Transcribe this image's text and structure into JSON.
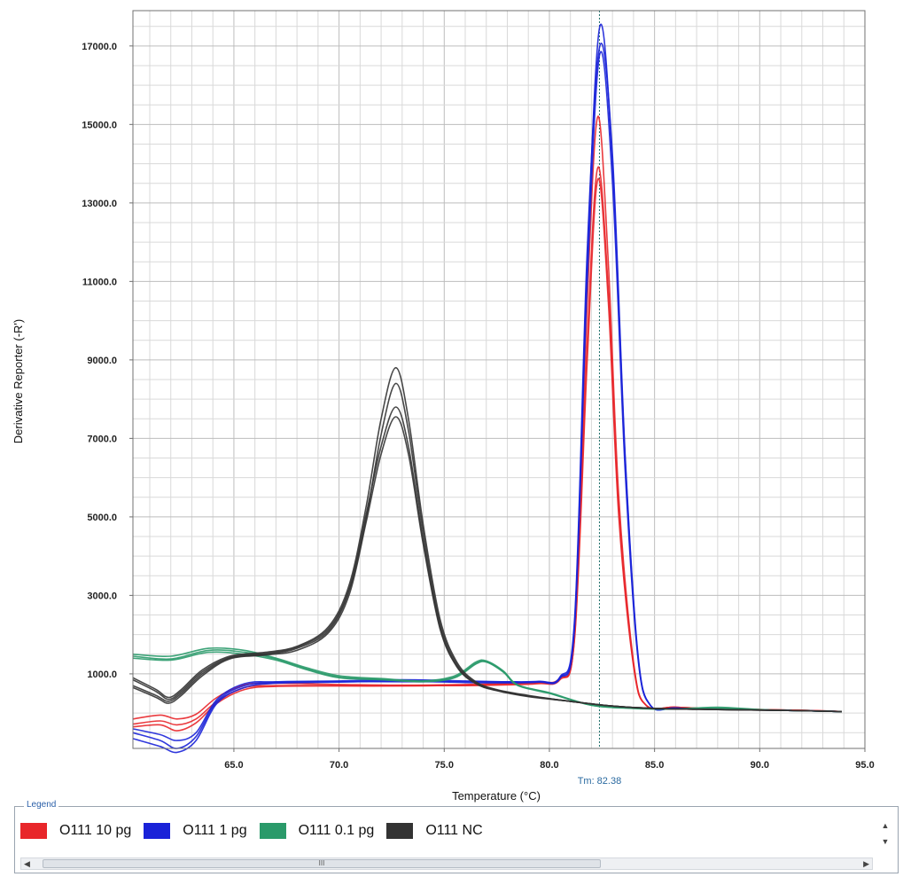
{
  "chart_data": {
    "type": "line",
    "title": "",
    "xlabel": "Temperature (°C)",
    "ylabel": "Derivative Reporter (-R')",
    "xlim": [
      60.2,
      95.0
    ],
    "ylim": [
      -900,
      17900
    ],
    "x_ticks": [
      65.0,
      70.0,
      75.0,
      80.0,
      85.0,
      90.0,
      95.0
    ],
    "x_tick_labels": [
      "65.0",
      "70.0",
      "75.0",
      "80.0",
      "85.0",
      "90.0",
      "95.0"
    ],
    "y_ticks": [
      1000,
      3000,
      5000,
      7000,
      9000,
      11000,
      13000,
      15000,
      17000
    ],
    "y_tick_labels": [
      "1000.0",
      "3000.0",
      "5000.0",
      "7000.0",
      "9000.0",
      "11000.0",
      "13000.0",
      "15000.0",
      "17000.0"
    ],
    "grid": true,
    "marker_line": {
      "x": 82.38,
      "label": "Tm: 82.38"
    },
    "legend_placement": "bottom",
    "series": [
      {
        "name": "O111 10 pg",
        "color": "#e8262a",
        "replicates": [
          {
            "x": [
              60.2,
              61.5,
              62.3,
              63.2,
              64.2,
              65.5,
              67,
              70,
              73,
              76,
              78,
              79.5,
              80.5,
              81.2,
              81.8,
              82.3,
              82.8,
              83.3,
              84,
              84.6,
              86,
              88,
              90,
              92,
              93.9
            ],
            "y": [
              -280,
              -200,
              -300,
              -150,
              300,
              650,
              700,
              700,
              700,
              700,
              720,
              750,
              850,
              1900,
              9000,
              13600,
              10500,
              5000,
              1200,
              200,
              150,
              110,
              90,
              70,
              40
            ]
          },
          {
            "x": [
              60.2,
              61.5,
              62.3,
              63.2,
              64.2,
              65.5,
              67,
              70,
              73,
              76,
              78,
              79.5,
              80.5,
              81.2,
              81.8,
              82.3,
              82.8,
              83.3,
              84,
              84.6,
              86,
              88,
              90,
              92,
              93.9
            ],
            "y": [
              -150,
              -50,
              -150,
              -30,
              400,
              720,
              760,
              730,
              710,
              730,
              760,
              790,
              900,
              2000,
              10500,
              15200,
              11500,
              5500,
              1300,
              200,
              150,
              110,
              90,
              70,
              40
            ]
          },
          {
            "x": [
              60.2,
              61.5,
              62.3,
              63.2,
              64.2,
              65.5,
              67,
              70,
              73,
              76,
              78,
              79.5,
              80.5,
              81.2,
              81.8,
              82.3,
              82.8,
              83.3,
              84,
              84.6,
              86,
              88,
              90,
              92,
              93.9
            ],
            "y": [
              -350,
              -300,
              -450,
              -250,
              250,
              600,
              680,
              690,
              690,
              710,
              740,
              770,
              880,
              1950,
              9500,
              13900,
              10800,
              5200,
              1250,
              200,
              150,
              110,
              90,
              70,
              40
            ]
          }
        ]
      },
      {
        "name": "O111 1 pg",
        "color": "#1a22d8",
        "replicates": [
          {
            "x": [
              60.2,
              61.5,
              62.3,
              63.2,
              64.2,
              65.5,
              67,
              70,
              73,
              76,
              78,
              79.5,
              80.5,
              81.2,
              81.8,
              82.4,
              83,
              83.6,
              84.2,
              84.8,
              86,
              88,
              90,
              92,
              93.9
            ],
            "y": [
              -500,
              -700,
              -900,
              -600,
              300,
              700,
              780,
              800,
              800,
              800,
              790,
              800,
              900,
              2300,
              11500,
              17500,
              14000,
              6500,
              1500,
              200,
              130,
              100,
              80,
              60,
              40
            ]
          },
          {
            "x": [
              60.2,
              61.5,
              62.3,
              63.2,
              64.2,
              65.5,
              67,
              70,
              73,
              76,
              78,
              79.5,
              80.5,
              81.2,
              81.8,
              82.4,
              83,
              83.6,
              84.2,
              84.8,
              86,
              88,
              90,
              92,
              93.9
            ],
            "y": [
              -650,
              -850,
              -1000,
              -700,
              250,
              650,
              760,
              790,
              820,
              780,
              770,
              790,
              880,
              2200,
              11000,
              16800,
              13500,
              6200,
              1450,
              200,
              130,
              100,
              80,
              60,
              40
            ]
          },
          {
            "x": [
              60.2,
              61.5,
              62.3,
              63.2,
              64.2,
              65.5,
              67,
              70,
              73,
              76,
              78,
              79.5,
              80.5,
              81.2,
              81.8,
              82.4,
              83,
              83.6,
              84.2,
              84.8,
              86,
              88,
              90,
              92,
              93.9
            ],
            "y": [
              -400,
              -550,
              -700,
              -500,
              350,
              750,
              800,
              820,
              850,
              820,
              800,
              810,
              920,
              2400,
              11800,
              17000,
              14200,
              6600,
              1550,
              200,
              130,
              100,
              80,
              60,
              40
            ]
          }
        ]
      },
      {
        "name": "O111 0.1 pg",
        "color": "#2a9a6a",
        "replicates": [
          {
            "x": [
              60.2,
              62,
              63.8,
              65.5,
              67,
              68.5,
              70,
              72,
              74,
              75.5,
              76.5,
              77,
              77.8,
              78.5,
              80,
              82,
              84,
              86,
              88,
              90,
              92,
              93.9
            ],
            "y": [
              1400,
              1350,
              1550,
              1500,
              1350,
              1100,
              900,
              850,
              800,
              900,
              1250,
              1300,
              1050,
              700,
              500,
              200,
              120,
              100,
              110,
              80,
              60,
              40
            ]
          },
          {
            "x": [
              60.2,
              62,
              63.8,
              65.5,
              67,
              68.5,
              70,
              72,
              74,
              75.5,
              76.5,
              77,
              77.8,
              78.5,
              80,
              82,
              84,
              86,
              88,
              90,
              92,
              93.9
            ],
            "y": [
              1500,
              1450,
              1650,
              1600,
              1400,
              1150,
              950,
              880,
              820,
              950,
              1300,
              1330,
              1080,
              720,
              520,
              210,
              130,
              110,
              150,
              90,
              60,
              40
            ]
          },
          {
            "x": [
              60.2,
              62,
              63.8,
              65.5,
              67,
              68.5,
              70,
              72,
              74,
              75.5,
              76.5,
              77,
              77.8,
              78.5,
              80,
              82,
              84,
              86,
              88,
              90,
              92,
              93.9
            ],
            "y": [
              1450,
              1380,
              1600,
              1550,
              1380,
              1120,
              920,
              860,
              810,
              920,
              1270,
              1310,
              1060,
              710,
              510,
              200,
              125,
              105,
              130,
              85,
              60,
              40
            ]
          }
        ]
      },
      {
        "name": "O111 NC",
        "color": "#333333",
        "replicates": [
          {
            "x": [
              60.2,
              61.3,
              61.9,
              62.5,
              63.5,
              64.8,
              66.5,
              68,
              69.5,
              70.5,
              71.3,
              72,
              72.7,
              73.3,
              74,
              74.8,
              75.6,
              76.5,
              77.5,
              79,
              81,
              83,
              85,
              88,
              91,
              93.9
            ],
            "y": [
              900,
              600,
              400,
              600,
              1100,
              1450,
              1550,
              1700,
              2200,
              3300,
              5300,
              7500,
              8800,
              7500,
              4800,
              2400,
              1300,
              800,
              600,
              450,
              300,
              180,
              120,
              90,
              70,
              40
            ]
          },
          {
            "x": [
              60.2,
              61.3,
              61.9,
              62.5,
              63.5,
              64.8,
              66.5,
              68,
              69.5,
              70.5,
              71.3,
              72,
              72.7,
              73.3,
              74,
              74.8,
              75.6,
              76.5,
              77.5,
              79,
              81,
              83,
              85,
              88,
              91,
              93.9
            ],
            "y": [
              700,
              450,
              300,
              500,
              1000,
              1400,
              1500,
              1650,
              2100,
              3150,
              5000,
              7100,
              8400,
              7200,
              4600,
              2300,
              1250,
              780,
              590,
              440,
              300,
              180,
              120,
              90,
              70,
              40
            ]
          },
          {
            "x": [
              60.2,
              61.3,
              61.9,
              62.5,
              63.5,
              64.8,
              66.5,
              68,
              69.5,
              70.5,
              71.3,
              72,
              72.7,
              73.3,
              74,
              74.8,
              75.6,
              76.5,
              77.5,
              79,
              81,
              83,
              85,
              88,
              91,
              93.9
            ],
            "y": [
              850,
              550,
              350,
              550,
              1050,
              1420,
              1520,
              1680,
              2150,
              3200,
              5100,
              6800,
              7800,
              6800,
              4400,
              2200,
              1200,
              760,
              580,
              430,
              300,
              180,
              120,
              90,
              70,
              40
            ]
          },
          {
            "x": [
              60.2,
              61.3,
              61.9,
              62.5,
              63.5,
              64.8,
              66.5,
              68,
              69.5,
              70.5,
              71.3,
              72,
              72.7,
              73.3,
              74,
              74.8,
              75.6,
              76.5,
              77.5,
              79,
              81,
              83,
              85,
              88,
              91,
              93.9
            ],
            "y": [
              650,
              400,
              250,
              450,
              950,
              1380,
              1480,
              1600,
              2050,
              3050,
              4900,
              6600,
              7550,
              6600,
              4300,
              2150,
              1180,
              750,
              570,
              420,
              300,
              180,
              120,
              90,
              70,
              40
            ]
          }
        ]
      }
    ]
  },
  "legend": {
    "title": "Legend",
    "scroll_thumb_grip": "III"
  }
}
